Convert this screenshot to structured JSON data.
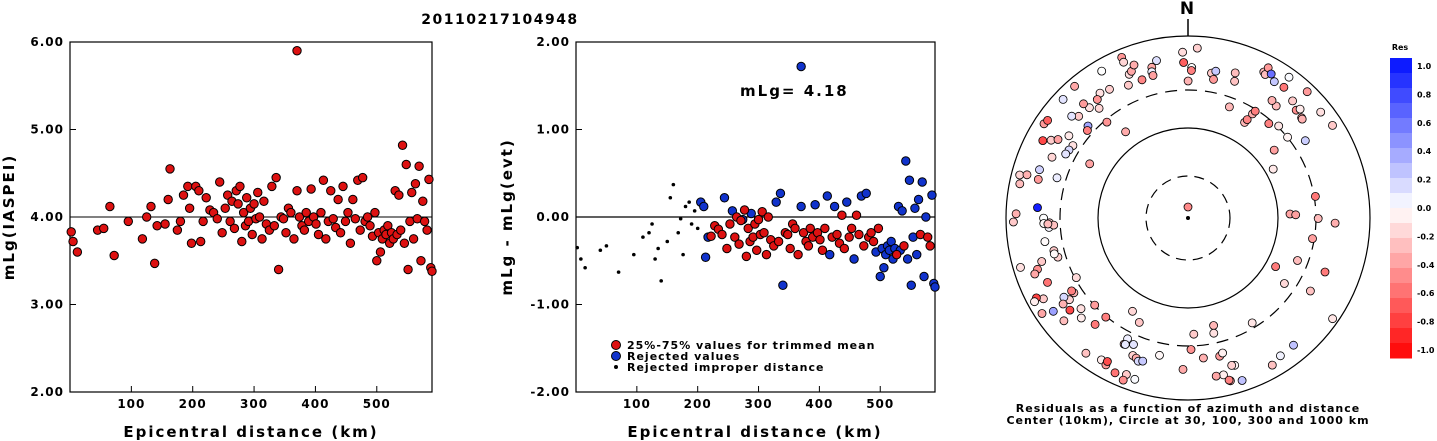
{
  "title": "20110217104948",
  "colors": {
    "kept": "#dd1111",
    "rejected": "#1133cc",
    "improper": "#000000"
  },
  "chart_data": [
    {
      "type": "scatter",
      "title": "",
      "xlabel": "Epicentral distance (km)",
      "ylabel": "mLg(IASPEI)",
      "xlim": [
        0,
        590
      ],
      "ylim": [
        2.0,
        6.0
      ],
      "xticks": [
        "100",
        "200",
        "300",
        "400",
        "500"
      ],
      "yticks": [
        "2.00",
        "3.00",
        "4.00",
        "5.00",
        "6.00"
      ],
      "series": [
        {
          "points": [
            [
              2,
              3.83
            ],
            [
              5,
              3.72
            ],
            [
              12,
              3.6
            ],
            [
              45,
              3.85
            ],
            [
              55,
              3.87
            ],
            [
              65,
              4.12
            ],
            [
              72,
              3.56
            ],
            [
              95,
              3.95
            ],
            [
              118,
              3.75
            ],
            [
              125,
              4.0
            ],
            [
              132,
              4.12
            ],
            [
              138,
              3.47
            ],
            [
              142,
              3.9
            ],
            [
              155,
              3.92
            ],
            [
              160,
              4.2
            ],
            [
              163,
              4.55
            ],
            [
              175,
              3.85
            ],
            [
              180,
              3.95
            ],
            [
              185,
              4.25
            ],
            [
              192,
              4.35
            ],
            [
              195,
              4.1
            ],
            [
              198,
              3.7
            ],
            [
              205,
              4.35
            ],
            [
              210,
              4.3
            ],
            [
              213,
              3.72
            ],
            [
              217,
              3.95
            ],
            [
              222,
              4.22
            ],
            [
              228,
              4.08
            ],
            [
              234,
              4.05
            ],
            [
              240,
              3.98
            ],
            [
              244,
              4.4
            ],
            [
              248,
              3.82
            ],
            [
              253,
              4.1
            ],
            [
              257,
              4.25
            ],
            [
              261,
              3.95
            ],
            [
              264,
              4.18
            ],
            [
              268,
              3.87
            ],
            [
              271,
              4.3
            ],
            [
              274,
              4.15
            ],
            [
              277,
              4.35
            ],
            [
              280,
              3.72
            ],
            [
              283,
              4.05
            ],
            [
              286,
              3.9
            ],
            [
              288,
              4.22
            ],
            [
              291,
              3.95
            ],
            [
              294,
              4.1
            ],
            [
              297,
              3.8
            ],
            [
              300,
              4.15
            ],
            [
              303,
              3.98
            ],
            [
              306,
              4.28
            ],
            [
              309,
              4.0
            ],
            [
              313,
              3.75
            ],
            [
              316,
              4.18
            ],
            [
              320,
              3.92
            ],
            [
              325,
              3.85
            ],
            [
              329,
              4.35
            ],
            [
              333,
              3.9
            ],
            [
              336,
              4.45
            ],
            [
              340,
              3.4
            ],
            [
              344,
              4.0
            ],
            [
              348,
              3.98
            ],
            [
              352,
              3.82
            ],
            [
              356,
              4.1
            ],
            [
              360,
              4.05
            ],
            [
              365,
              3.75
            ],
            [
              370,
              4.3
            ],
            [
              374,
              4.0
            ],
            [
              378,
              3.9
            ],
            [
              382,
              3.85
            ],
            [
              385,
              4.05
            ],
            [
              389,
              3.95
            ],
            [
              393,
              4.32
            ],
            [
              397,
              4.0
            ],
            [
              401,
              3.92
            ],
            [
              405,
              3.8
            ],
            [
              409,
              4.05
            ],
            [
              413,
              4.42
            ],
            [
              417,
              3.75
            ],
            [
              421,
              3.95
            ],
            [
              425,
              4.3
            ],
            [
              429,
              3.98
            ],
            [
              433,
              3.88
            ],
            [
              437,
              4.2
            ],
            [
              441,
              3.82
            ],
            [
              445,
              4.35
            ],
            [
              449,
              3.95
            ],
            [
              453,
              4.05
            ],
            [
              457,
              3.7
            ],
            [
              461,
              4.2
            ],
            [
              465,
              3.98
            ],
            [
              469,
              4.42
            ],
            [
              473,
              3.85
            ],
            [
              477,
              4.45
            ],
            [
              481,
              3.95
            ],
            [
              485,
              4.0
            ],
            [
              489,
              3.9
            ],
            [
              493,
              3.78
            ],
            [
              497,
              4.05
            ],
            [
              500,
              3.5
            ],
            [
              503,
              3.82
            ],
            [
              506,
              3.6
            ],
            [
              509,
              3.75
            ],
            [
              512,
              3.85
            ],
            [
              515,
              3.8
            ],
            [
              518,
              3.9
            ],
            [
              521,
              3.7
            ],
            [
              524,
              3.82
            ],
            [
              527,
              3.75
            ],
            [
              530,
              4.3
            ],
            [
              533,
              3.8
            ],
            [
              536,
              4.25
            ],
            [
              539,
              3.85
            ],
            [
              542,
              4.82
            ],
            [
              545,
              3.7
            ],
            [
              548,
              4.6
            ],
            [
              551,
              3.4
            ],
            [
              554,
              3.95
            ],
            [
              557,
              4.28
            ],
            [
              560,
              3.75
            ],
            [
              563,
              4.38
            ],
            [
              566,
              3.98
            ],
            [
              569,
              4.58
            ],
            [
              572,
              3.5
            ],
            [
              575,
              4.18
            ],
            [
              578,
              3.95
            ],
            [
              582,
              3.85
            ],
            [
              585,
              4.43
            ],
            [
              588,
              3.42
            ],
            [
              590,
              3.38
            ],
            [
              370,
              5.9
            ]
          ]
        }
      ]
    },
    {
      "type": "scatter",
      "title": "",
      "xlabel": "Epicentral distance (km)",
      "ylabel": "mLg - mLg(evt)",
      "annotation": "mLg= 4.18",
      "xlim": [
        0,
        590
      ],
      "ylim": [
        -2.0,
        2.0
      ],
      "xticks": [
        "100",
        "200",
        "300",
        "400",
        "500"
      ],
      "yticks": [
        "-2.00",
        "-1.00",
        "0.00",
        "1.00",
        "2.00"
      ],
      "legend_position": "bottom-left",
      "series": [
        {
          "name": "25%-75% values for trimmed mean",
          "points": [
            [
              222,
              -0.22
            ],
            [
              228,
              -0.1
            ],
            [
              234,
              -0.14
            ],
            [
              240,
              -0.2
            ],
            [
              248,
              -0.36
            ],
            [
              253,
              -0.08
            ],
            [
              261,
              -0.23
            ],
            [
              264,
              0.0
            ],
            [
              268,
              -0.31
            ],
            [
              271,
              -0.04
            ],
            [
              277,
              0.08
            ],
            [
              280,
              -0.45
            ],
            [
              283,
              -0.13
            ],
            [
              286,
              -0.28
            ],
            [
              291,
              -0.23
            ],
            [
              294,
              -0.08
            ],
            [
              297,
              -0.38
            ],
            [
              300,
              -0.03
            ],
            [
              303,
              -0.2
            ],
            [
              306,
              0.06
            ],
            [
              309,
              -0.18
            ],
            [
              313,
              -0.43
            ],
            [
              316,
              0.0
            ],
            [
              320,
              -0.26
            ],
            [
              325,
              -0.33
            ],
            [
              333,
              -0.28
            ],
            [
              344,
              -0.18
            ],
            [
              348,
              -0.2
            ],
            [
              352,
              -0.36
            ],
            [
              356,
              -0.08
            ],
            [
              360,
              -0.13
            ],
            [
              365,
              -0.43
            ],
            [
              374,
              -0.18
            ],
            [
              378,
              -0.28
            ],
            [
              382,
              -0.33
            ],
            [
              385,
              -0.13
            ],
            [
              389,
              -0.23
            ],
            [
              397,
              -0.18
            ],
            [
              401,
              -0.26
            ],
            [
              405,
              -0.38
            ],
            [
              409,
              -0.13
            ],
            [
              421,
              -0.23
            ],
            [
              429,
              -0.2
            ],
            [
              433,
              -0.3
            ],
            [
              437,
              0.02
            ],
            [
              441,
              -0.36
            ],
            [
              449,
              -0.23
            ],
            [
              453,
              -0.13
            ],
            [
              461,
              0.02
            ],
            [
              465,
              -0.2
            ],
            [
              473,
              -0.33
            ],
            [
              481,
              -0.23
            ],
            [
              485,
              -0.18
            ],
            [
              489,
              -0.28
            ],
            [
              497,
              -0.13
            ],
            [
              527,
              -0.43
            ],
            [
              539,
              -0.33
            ],
            [
              566,
              -0.2
            ],
            [
              578,
              -0.23
            ],
            [
              582,
              -0.33
            ]
          ]
        },
        {
          "name": "Rejected values",
          "points": [
            [
              205,
              0.17
            ],
            [
              210,
              0.12
            ],
            [
              213,
              -0.46
            ],
            [
              217,
              -0.23
            ],
            [
              244,
              0.22
            ],
            [
              257,
              0.07
            ],
            [
              274,
              -0.03
            ],
            [
              288,
              0.04
            ],
            [
              329,
              0.17
            ],
            [
              336,
              0.27
            ],
            [
              340,
              -0.78
            ],
            [
              370,
              0.12
            ],
            [
              393,
              0.14
            ],
            [
              413,
              0.24
            ],
            [
              417,
              -0.43
            ],
            [
              425,
              0.12
            ],
            [
              445,
              0.17
            ],
            [
              457,
              -0.48
            ],
            [
              469,
              0.24
            ],
            [
              477,
              0.27
            ],
            [
              493,
              -0.4
            ],
            [
              500,
              -0.68
            ],
            [
              503,
              -0.36
            ],
            [
              506,
              -0.58
            ],
            [
              509,
              -0.43
            ],
            [
              512,
              -0.33
            ],
            [
              515,
              -0.38
            ],
            [
              518,
              -0.28
            ],
            [
              521,
              -0.48
            ],
            [
              524,
              -0.36
            ],
            [
              530,
              0.12
            ],
            [
              533,
              -0.38
            ],
            [
              536,
              0.07
            ],
            [
              542,
              0.64
            ],
            [
              545,
              -0.48
            ],
            [
              548,
              0.42
            ],
            [
              551,
              -0.78
            ],
            [
              554,
              -0.23
            ],
            [
              557,
              0.1
            ],
            [
              560,
              -0.43
            ],
            [
              563,
              0.2
            ],
            [
              569,
              0.4
            ],
            [
              572,
              -0.68
            ],
            [
              575,
              0.0
            ],
            [
              585,
              0.25
            ],
            [
              588,
              -0.76
            ],
            [
              590,
              -0.8
            ],
            [
              370,
              1.72
            ]
          ]
        },
        {
          "name": "Rejected improper distance",
          "points": [
            [
              2,
              -0.35
            ],
            [
              8,
              -0.48
            ],
            [
              15,
              -0.58
            ],
            [
              40,
              -0.38
            ],
            [
              50,
              -0.33
            ],
            [
              70,
              -0.63
            ],
            [
              95,
              -0.43
            ],
            [
              110,
              -0.23
            ],
            [
              120,
              -0.18
            ],
            [
              125,
              -0.08
            ],
            [
              130,
              -0.48
            ],
            [
              135,
              -0.36
            ],
            [
              140,
              -0.73
            ],
            [
              150,
              -0.28
            ],
            [
              155,
              0.22
            ],
            [
              160,
              0.37
            ],
            [
              168,
              -0.18
            ],
            [
              172,
              -0.02
            ],
            [
              176,
              -0.43
            ],
            [
              180,
              0.12
            ],
            [
              186,
              0.17
            ],
            [
              190,
              -0.08
            ],
            [
              195,
              0.07
            ],
            [
              200,
              -0.13
            ]
          ]
        }
      ]
    }
  ],
  "polar": {
    "north_label": "N",
    "caption_line1": "Residuals as a function of azimuth and distance",
    "caption_line2": "Center (10km), Circle at 30, 100, 300 and 1000 km",
    "colorbar_title": "Res",
    "colorbar_ticks": [
      "1.0",
      "0.8",
      "0.6",
      "0.4",
      "0.2",
      "0.0",
      "-0.2",
      "-0.4",
      "-0.6",
      "-0.8",
      "-1.0"
    ]
  }
}
